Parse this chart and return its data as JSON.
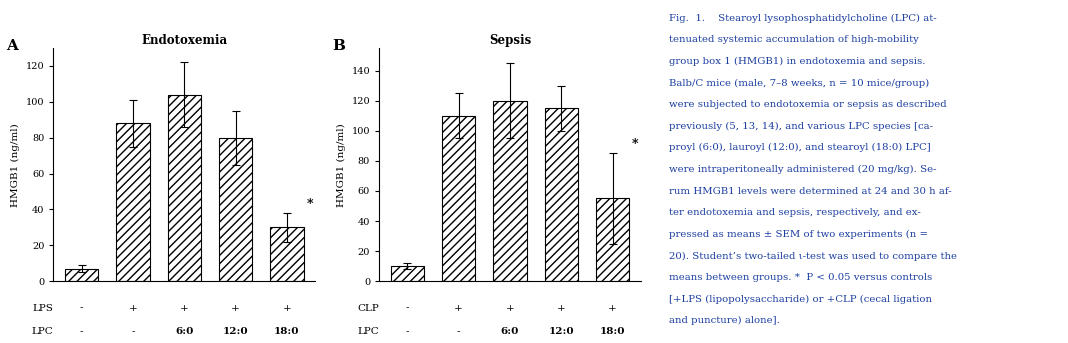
{
  "panel_A": {
    "title": "Endotoxemia",
    "ylabel": "HMGB1 (ng/ml)",
    "ylim": [
      0,
      130
    ],
    "yticks": [
      0,
      20,
      40,
      60,
      80,
      100,
      120
    ],
    "bar_values": [
      7,
      88,
      104,
      80,
      30
    ],
    "bar_errors": [
      2,
      13,
      18,
      15,
      8
    ],
    "star_idx": [
      4
    ],
    "row1_label": "LPS",
    "row2_label": "LPC",
    "row1_values": [
      "-",
      "+",
      "+",
      "+",
      "+"
    ],
    "row2_values": [
      "-",
      "-",
      "6:0",
      "12:0",
      "18:0"
    ]
  },
  "panel_B": {
    "title": "Sepsis",
    "ylabel": "HMGB1 (ng/ml)",
    "ylim": [
      0,
      155
    ],
    "yticks": [
      0,
      20,
      40,
      60,
      80,
      100,
      120,
      140
    ],
    "bar_values": [
      10,
      110,
      120,
      115,
      55
    ],
    "bar_errors": [
      2,
      15,
      25,
      15,
      30
    ],
    "star_idx": [
      4
    ],
    "row1_label": "CLP",
    "row2_label": "LPC",
    "row1_values": [
      "-",
      "+",
      "+",
      "+",
      "+"
    ],
    "row2_values": [
      "-",
      "-",
      "6:0",
      "12:0",
      "18:0"
    ]
  },
  "caption_lines": [
    "Fig.  1.    Stearoyl lysophosphatidylcholine (LPC) at-",
    "tenuated systemic accumulation of high-mobility",
    "group box 1 (HMGB1) in endotoxemia and sepsis.",
    "Balb/C mice (male, 7–8 weeks, n = 10 mice/group)",
    "were subjected to endotoxemia or sepsis as described",
    "previously (5, 13, 14), and various LPC species [ca-",
    "proyl (6:0), lauroyl (12:0), and stearoyl (18:0) LPC]",
    "were intraperitoneally administered (20 mg/kg). Se-",
    "rum HMGB1 levels were determined at 24 and 30 h af-",
    "ter endotoxemia and sepsis, respectively, and ex-",
    "pressed as means ± SEM of two experiments (n =",
    "20). Student’s two-tailed ι-test was used to compare the",
    "means between groups. *  P < 0.05 versus controls",
    "[+LPS (lipopolysaccharide) or +CLP (cecal ligation",
    "and puncture) alone]."
  ],
  "hatch_pattern": "////",
  "caption_color": "#1c3fa0",
  "background_color": "#ffffff"
}
